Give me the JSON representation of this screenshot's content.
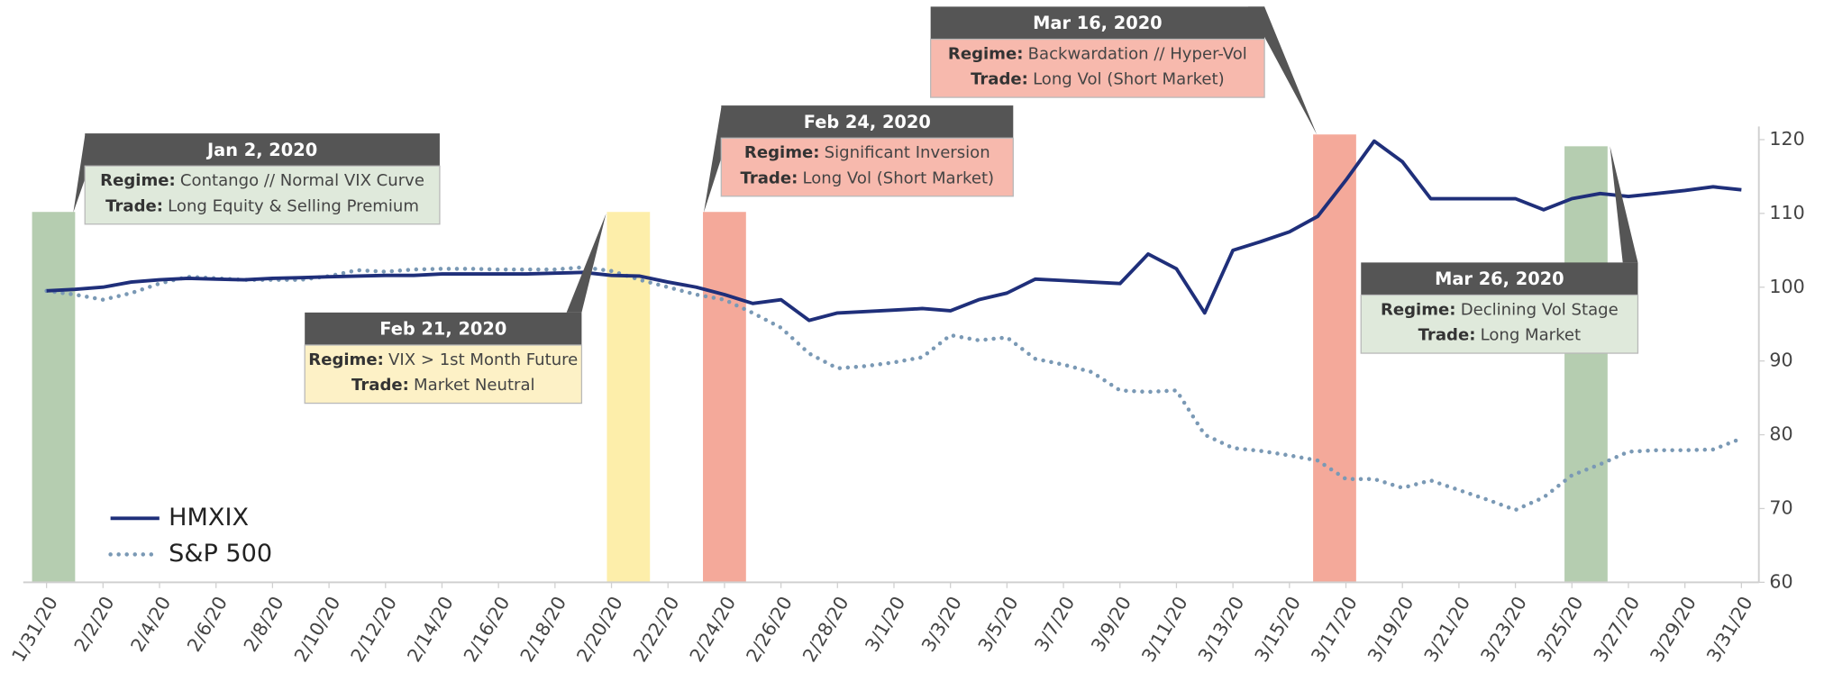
{
  "chart_data": {
    "type": "line",
    "categories": [
      "1/31/20",
      null,
      "2/2/20",
      null,
      "2/4/20",
      null,
      "2/6/20",
      null,
      "2/8/20",
      null,
      "2/10/20",
      null,
      "2/12/20",
      null,
      "2/14/20",
      null,
      "2/16/20",
      null,
      "2/18/20",
      null,
      "2/20/20",
      null,
      "2/22/20",
      null,
      "2/24/20",
      null,
      "2/26/20",
      null,
      "2/28/20",
      null,
      "3/1/20",
      null,
      "3/3/20",
      null,
      "3/5/20",
      null,
      "3/7/20",
      null,
      "3/9/20",
      null,
      "3/11/20",
      null,
      "3/13/20",
      null,
      "3/15/20",
      null,
      "3/17/20",
      null,
      "3/19/20",
      null,
      "3/21/20",
      null,
      "3/23/20",
      null,
      "3/25/20",
      null,
      "3/27/20",
      null,
      "3/29/20",
      null,
      "3/31/20"
    ],
    "series": [
      {
        "name": "HMXIX",
        "color": "#1f2f7a",
        "style": "solid",
        "values": [
          99.5,
          99.7,
          100,
          100.7,
          101,
          101.2,
          101.1,
          101,
          101.2,
          101.3,
          101.4,
          101.5,
          101.6,
          101.6,
          101.8,
          101.8,
          101.8,
          101.8,
          101.9,
          102,
          101.6,
          101.5,
          100.7,
          100,
          99,
          97.8,
          98.3,
          95.5,
          96.5,
          96.7,
          96.9,
          97.1,
          96.8,
          98.3,
          99.2,
          101.1,
          100.9,
          100.7,
          100.5,
          104.5,
          102.5,
          96.5,
          105,
          106.2,
          107.5,
          109.6,
          114.5,
          119.8,
          117,
          112,
          112,
          112,
          112,
          110.5,
          112,
          112.7,
          112.3,
          112.7,
          113.1,
          113.6,
          113.2
        ]
      },
      {
        "name": "S&P 500",
        "color": "#7a99b5",
        "style": "dotted",
        "values": [
          99.5,
          99,
          98.3,
          99.2,
          100.5,
          101.4,
          101.2,
          101,
          101,
          101,
          101.5,
          102.3,
          102.1,
          102.4,
          102.5,
          102.5,
          102.4,
          102.4,
          102.4,
          102.7,
          102.2,
          101,
          100,
          99,
          98.3,
          96.5,
          94.5,
          91,
          89,
          89.3,
          89.8,
          90.5,
          93.5,
          92.8,
          93.2,
          90.3,
          89.5,
          88.5,
          86,
          85.8,
          86,
          80,
          78.2,
          77.8,
          77.2,
          76.5,
          74,
          74,
          72.8,
          73.8,
          72.5,
          71.2,
          69.8,
          71.5,
          74.5,
          76,
          77.7,
          77.9,
          77.9,
          78,
          79.5
        ]
      }
    ],
    "ylim": [
      60,
      121
    ],
    "yticks": [
      60,
      70,
      80,
      90,
      100,
      110,
      120
    ],
    "legend": "lower left",
    "annotations": [
      {
        "date": "Jan 2, 2020",
        "regime_label": "Regime:",
        "regime": "Contango // Normal VIX Curve",
        "trade_label": "Trade:",
        "trade": "Long Equity & Selling Premium",
        "x": 0.25,
        "top": 110.2,
        "band_color": "#b5cdb0",
        "box_color": "#dfe9db"
      },
      {
        "date": "Feb 21, 2020",
        "regime_label": "Regime:",
        "regime": "VIX > 1st Month Future",
        "trade_label": "Trade:",
        "trade": "Market Neutral",
        "x": 20.6,
        "top": 110.2,
        "band_color": "#fdeeaa",
        "box_color": "#fdf1c6"
      },
      {
        "date": "Feb 24, 2020",
        "regime_label": "Regime:",
        "regime": "Significant Inversion",
        "trade_label": "Trade:",
        "trade": "Long Vol (Short Market)",
        "x": 24,
        "top": 110.2,
        "band_color": "#f4a99a",
        "box_color": "#f7b9ad"
      },
      {
        "date": "Mar 16, 2020",
        "regime_label": "Regime:",
        "regime": "Backwardation // Hyper-Vol",
        "trade_label": "Trade:",
        "trade": "Long Vol (Short Market)",
        "x": 45.6,
        "top": 120.7,
        "band_color": "#f4a99a",
        "box_color": "#f7b9ad"
      },
      {
        "date": "Mar 26, 2020",
        "regime_label": "Regime:",
        "regime": "Declining Vol Stage",
        "trade_label": "Trade:",
        "trade": "Long Market",
        "x": 54.5,
        "top": 119.1,
        "band_color": "#b5cdb0",
        "box_color": "#dfe9db"
      }
    ]
  }
}
